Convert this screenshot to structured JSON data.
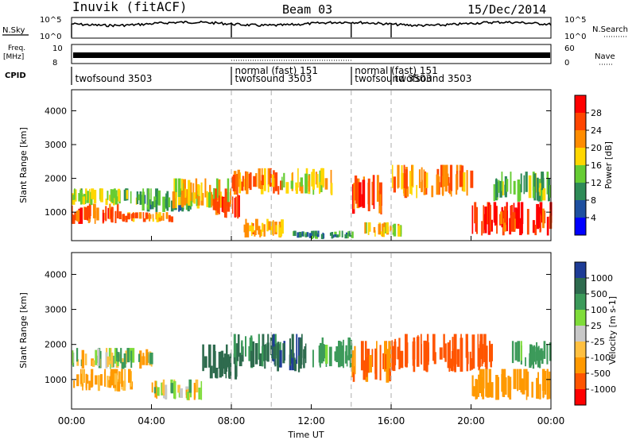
{
  "header": {
    "station": "Inuvik (fitACF)",
    "beam": "Beam 03",
    "date": "15/Dec/2014"
  },
  "side_labels": {
    "nsky": "N.Sky",
    "nsearch": "N.Search",
    "freq": "Freq.",
    "mhz": "[MHz]",
    "nave": "Nave",
    "cpid": "CPID"
  },
  "axes": {
    "xlabel": "Time UT",
    "ylabel_power": "Slant Range [km]",
    "ylabel_velocity": "Slant Range [km]",
    "x_ticks": [
      "00:00",
      "04:00",
      "08:00",
      "12:00",
      "16:00",
      "20:00",
      "00:00"
    ],
    "y_ticks": [
      "1000",
      "2000",
      "3000",
      "4000"
    ],
    "noise_ticks_left": [
      "10^5",
      "10^0"
    ],
    "noise_ticks_right": [
      "10^5",
      "10^0"
    ],
    "freq_ticks": [
      "10",
      "8"
    ],
    "nave_ticks": [
      "60",
      "0"
    ]
  },
  "cpid_labels": [
    {
      "text": "twofsound 3503",
      "t": 0.1
    },
    {
      "text": "normal (fast) 151",
      "t": 8.1
    },
    {
      "text": "twofsound 3503",
      "t": 8.1
    },
    {
      "text": "normal (fast) 151",
      "t": 14.1
    },
    {
      "text": "twofsound 3503",
      "t": 14.1
    },
    {
      "text": "twofsound 3503",
      "t": 16.1
    }
  ],
  "power_colorbar": {
    "label": "Power [dB]",
    "ticks": [
      "28",
      "24",
      "20",
      "16",
      "12",
      "8",
      "4"
    ],
    "colors": [
      "#ff0000",
      "#ff4500",
      "#ff8c00",
      "#ffd700",
      "#66cc33",
      "#2e8b57",
      "#1e50a0",
      "#0000ff"
    ]
  },
  "velocity_colorbar": {
    "label": "Velocity [m s-1]",
    "ticks": [
      "1000",
      "500",
      "100",
      "25",
      "-25",
      "-100",
      "-500",
      "-1000"
    ],
    "colors": [
      "#1e3c96",
      "#2e6b4e",
      "#3c9a5a",
      "#7fdc3a",
      "#c8c8c8",
      "#ffc040",
      "#ff9900",
      "#ff5500",
      "#ff0000"
    ]
  },
  "chart_data": [
    {
      "type": "heatmap",
      "title": "Power",
      "xlabel": "Time UT",
      "ylabel": "Slant Range [km]",
      "xlim": [
        0,
        24
      ],
      "ylim": [
        180,
        4600
      ],
      "value_range": [
        0,
        30
      ],
      "colorbar_label": "Power [dB]",
      "patches": [
        {
          "t0": 0.0,
          "t1": 2.5,
          "r0": 650,
          "r1": 1250,
          "v": 26
        },
        {
          "t0": 0.0,
          "t1": 3.5,
          "r0": 1200,
          "r1": 1700,
          "v": 14
        },
        {
          "t0": 2.5,
          "t1": 5.0,
          "r0": 700,
          "r1": 1000,
          "v": 22
        },
        {
          "t0": 3.5,
          "t1": 6.0,
          "r0": 1000,
          "r1": 1700,
          "v": 10
        },
        {
          "t0": 5.0,
          "t1": 8.0,
          "r0": 1100,
          "r1": 2000,
          "v": 18
        },
        {
          "t0": 7.0,
          "t1": 8.3,
          "r0": 800,
          "r1": 1700,
          "v": 26
        },
        {
          "t0": 8.0,
          "t1": 10.5,
          "r0": 1500,
          "r1": 2300,
          "v": 22
        },
        {
          "t0": 8.5,
          "t1": 10.5,
          "r0": 250,
          "r1": 800,
          "v": 20
        },
        {
          "t0": 10.5,
          "t1": 13.0,
          "r0": 1500,
          "r1": 2300,
          "v": 16
        },
        {
          "t0": 11.0,
          "t1": 14.0,
          "r0": 200,
          "r1": 450,
          "v": 8
        },
        {
          "t0": 14.0,
          "t1": 15.5,
          "r0": 900,
          "r1": 2100,
          "v": 24
        },
        {
          "t0": 14.5,
          "t1": 16.5,
          "r0": 250,
          "r1": 700,
          "v": 18
        },
        {
          "t0": 16.0,
          "t1": 20.0,
          "r0": 1400,
          "r1": 2400,
          "v": 22
        },
        {
          "t0": 20.0,
          "t1": 24.0,
          "r0": 300,
          "r1": 1300,
          "v": 28
        },
        {
          "t0": 21.0,
          "t1": 24.0,
          "r0": 1300,
          "r1": 2200,
          "v": 12
        }
      ]
    },
    {
      "type": "heatmap",
      "title": "Velocity",
      "xlabel": "Time UT",
      "ylabel": "Slant Range [km]",
      "xlim": [
        0,
        24
      ],
      "ylim": [
        180,
        4600
      ],
      "value_range": [
        -1000,
        1000
      ],
      "colorbar_label": "Velocity [m s-1]",
      "patches": [
        {
          "t0": 0.0,
          "t1": 3.0,
          "r0": 650,
          "r1": 1300,
          "v": -100
        },
        {
          "t0": 0.0,
          "t1": 4.0,
          "r0": 1300,
          "r1": 1900,
          "v": 25
        },
        {
          "t0": 4.0,
          "t1": 6.5,
          "r0": 400,
          "r1": 1000,
          "v": 0
        },
        {
          "t0": 6.5,
          "t1": 8.3,
          "r0": 1000,
          "r1": 2000,
          "v": 600
        },
        {
          "t0": 8.0,
          "t1": 10.5,
          "r0": 1300,
          "r1": 2300,
          "v": 300
        },
        {
          "t0": 10.0,
          "t1": 12.0,
          "r0": 1200,
          "r1": 2300,
          "v": 700
        },
        {
          "t0": 12.0,
          "t1": 14.0,
          "r0": 1300,
          "r1": 2200,
          "v": 150
        },
        {
          "t0": 14.0,
          "t1": 16.0,
          "r0": 900,
          "r1": 2100,
          "v": -300
        },
        {
          "t0": 16.0,
          "t1": 21.0,
          "r0": 1200,
          "r1": 2300,
          "v": -400
        },
        {
          "t0": 20.0,
          "t1": 24.0,
          "r0": 400,
          "r1": 1300,
          "v": -200
        },
        {
          "t0": 22.0,
          "t1": 24.0,
          "r0": 1300,
          "r1": 2100,
          "v": 150
        }
      ]
    }
  ]
}
